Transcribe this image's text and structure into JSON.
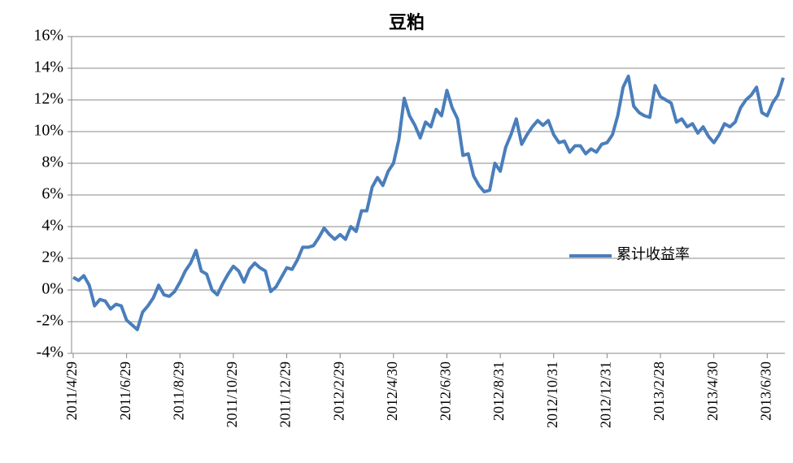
{
  "chart_data": {
    "type": "line",
    "title": "豆粕",
    "categories": [
      "2011/4/29",
      null,
      null,
      null,
      null,
      null,
      null,
      null,
      null,
      null,
      "2011/6/29",
      null,
      null,
      null,
      null,
      null,
      null,
      null,
      null,
      null,
      "2011/8/29",
      null,
      null,
      null,
      null,
      null,
      null,
      null,
      null,
      null,
      "2011/10/29",
      null,
      null,
      null,
      null,
      null,
      null,
      null,
      null,
      null,
      "2011/12/29",
      null,
      null,
      null,
      null,
      null,
      null,
      null,
      null,
      null,
      "2012/2/29",
      null,
      null,
      null,
      null,
      null,
      null,
      null,
      null,
      null,
      "2012/4/30",
      null,
      null,
      null,
      null,
      null,
      null,
      null,
      null,
      null,
      "2012/6/30",
      null,
      null,
      null,
      null,
      null,
      null,
      null,
      null,
      null,
      "2012/8/31",
      null,
      null,
      null,
      null,
      null,
      null,
      null,
      null,
      null,
      "2012/10/31",
      null,
      null,
      null,
      null,
      null,
      null,
      null,
      null,
      null,
      "2012/12/31",
      null,
      null,
      null,
      null,
      null,
      null,
      null,
      null,
      null,
      "2013/2/28",
      null,
      null,
      null,
      null,
      null,
      null,
      null,
      null,
      null,
      "2013/4/30",
      null,
      null,
      null,
      null,
      null,
      null,
      null,
      null,
      null,
      "2013/6/30",
      null,
      null,
      null
    ],
    "series": [
      {
        "name": "累计收益率",
        "color": "#4a7ebb",
        "values": [
          0.8,
          0.6,
          0.9,
          0.3,
          -1.0,
          -0.6,
          -0.7,
          -1.2,
          -0.9,
          -1.0,
          -1.9,
          -2.2,
          -2.5,
          -1.4,
          -1.0,
          -0.5,
          0.3,
          -0.3,
          -0.4,
          -0.1,
          0.5,
          1.2,
          1.7,
          2.5,
          1.2,
          1.0,
          0.0,
          -0.3,
          0.4,
          1.0,
          1.5,
          1.2,
          0.5,
          1.3,
          1.7,
          1.4,
          1.2,
          -0.1,
          0.2,
          0.8,
          1.4,
          1.3,
          1.9,
          2.7,
          2.7,
          2.8,
          3.3,
          3.9,
          3.5,
          3.2,
          3.5,
          3.2,
          4.0,
          3.7,
          5.0,
          5.0,
          6.5,
          7.1,
          6.6,
          7.5,
          8.0,
          9.5,
          12.1,
          11.0,
          10.4,
          9.6,
          10.6,
          10.3,
          11.4,
          11.0,
          12.6,
          11.5,
          10.8,
          8.5,
          8.6,
          7.2,
          6.6,
          6.2,
          6.3,
          8.0,
          7.5,
          9.0,
          9.8,
          10.8,
          9.2,
          9.8,
          10.3,
          10.7,
          10.4,
          10.7,
          9.8,
          9.3,
          9.4,
          8.7,
          9.1,
          9.1,
          8.6,
          8.9,
          8.7,
          9.2,
          9.3,
          9.8,
          11.0,
          12.8,
          13.5,
          11.6,
          11.2,
          11.0,
          10.9,
          12.9,
          12.2,
          12.0,
          11.8,
          10.6,
          10.8,
          10.3,
          10.5,
          9.9,
          10.3,
          9.7,
          9.3,
          9.8,
          10.5,
          10.3,
          10.6,
          11.5,
          12.0,
          12.3,
          12.8,
          11.2,
          11.0,
          11.8,
          12.3,
          13.4
        ]
      }
    ],
    "ylim": [
      -4,
      16
    ],
    "yticks": [
      {
        "value": -4,
        "label": "-4%"
      },
      {
        "value": -2,
        "label": "-2%"
      },
      {
        "value": 0,
        "label": "0%"
      },
      {
        "value": 2,
        "label": "2%"
      },
      {
        "value": 4,
        "label": "4%"
      },
      {
        "value": 6,
        "label": "6%"
      },
      {
        "value": 8,
        "label": "8%"
      },
      {
        "value": 10,
        "label": "10%"
      },
      {
        "value": 12,
        "label": "12%"
      },
      {
        "value": 14,
        "label": "14%"
      },
      {
        "value": 16,
        "label": "16%"
      }
    ],
    "grid": true
  }
}
